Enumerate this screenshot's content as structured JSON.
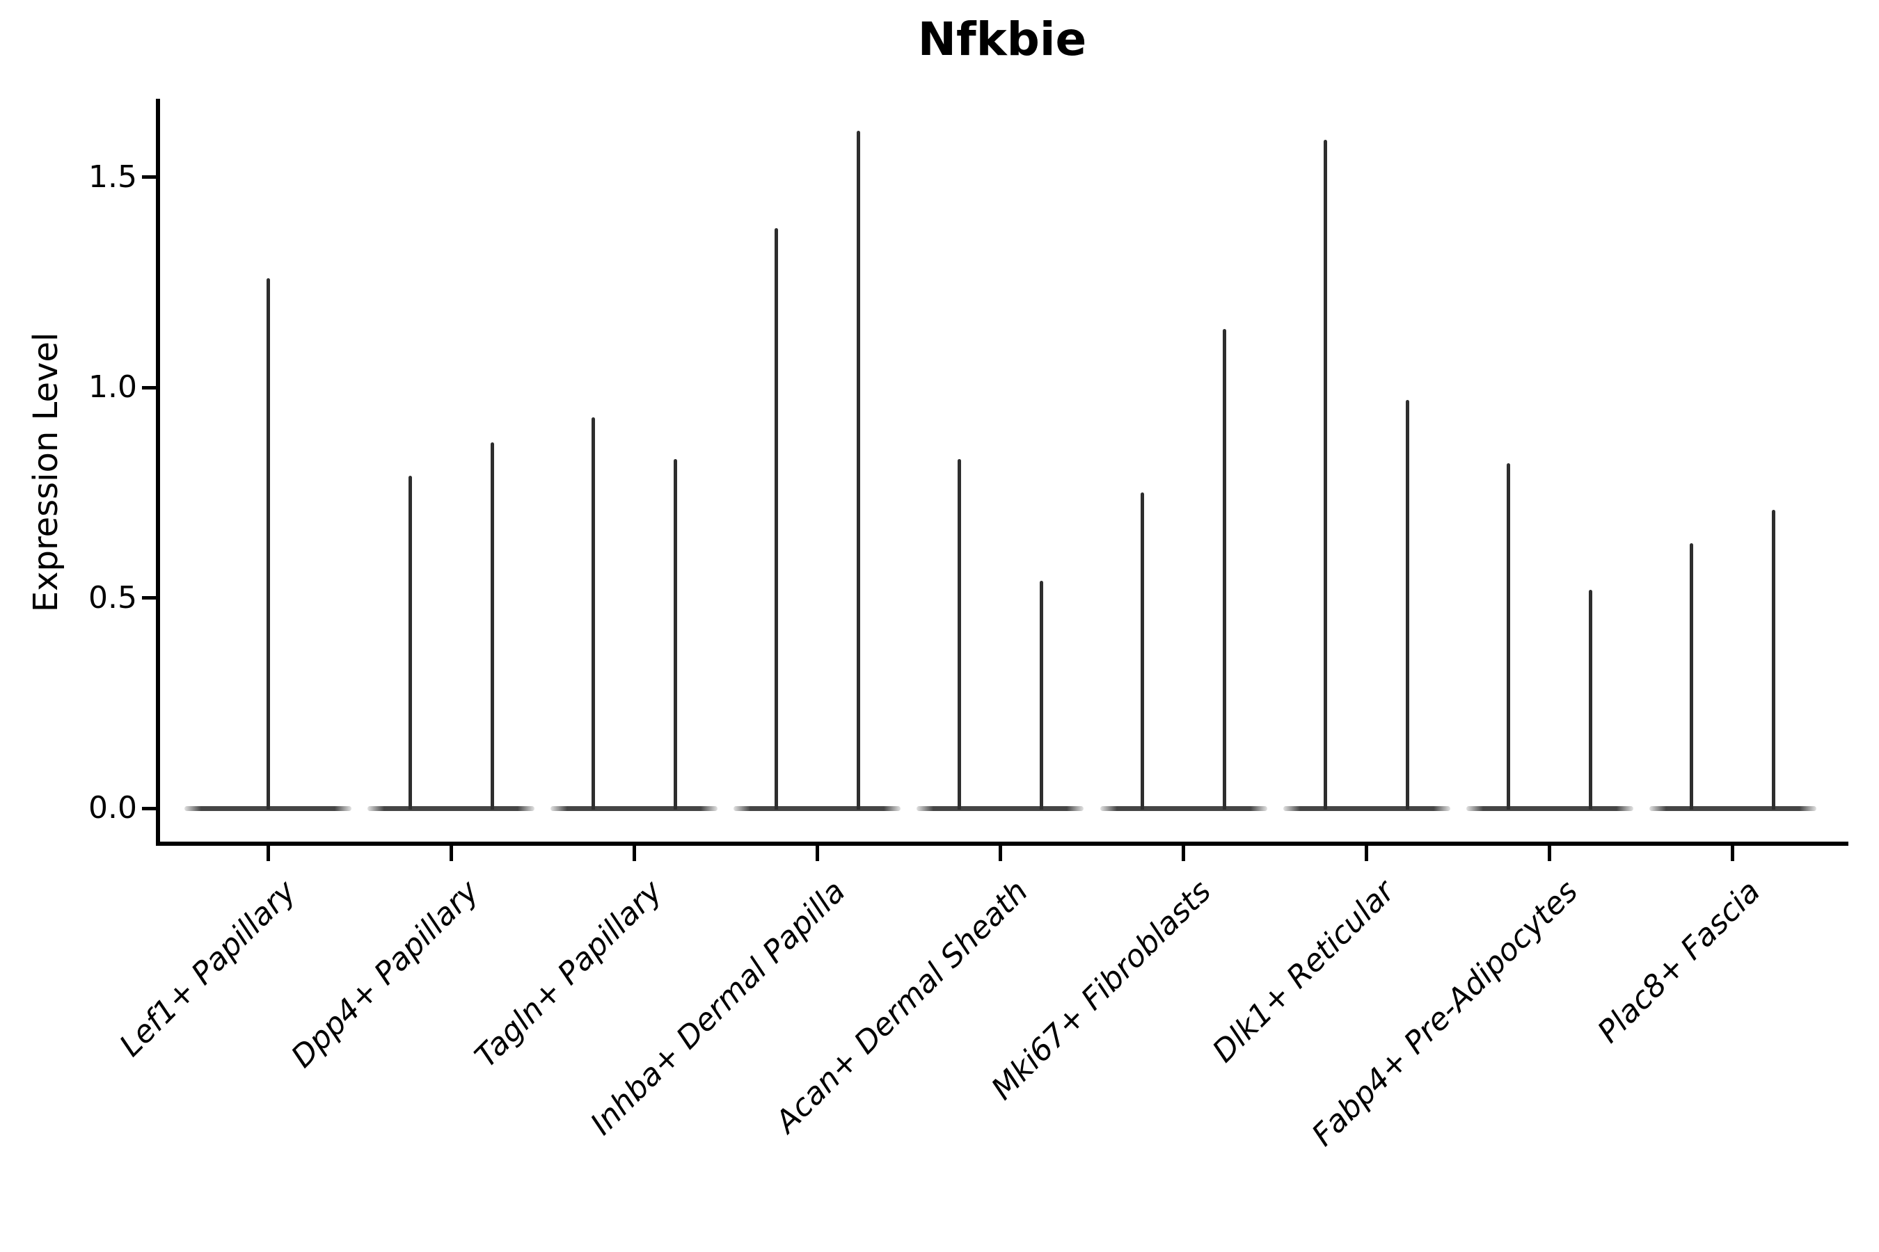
{
  "chart_data": {
    "type": "violin",
    "title": "Nfkbie",
    "ylabel": "Expression Level",
    "xlabel": "",
    "ytick_labels": [
      "0.0",
      "0.5",
      "1.0",
      "1.5"
    ],
    "ytick_values": [
      0.0,
      0.5,
      1.0,
      1.5
    ],
    "ylim": [
      -0.08,
      1.69
    ],
    "grid": false,
    "legend_position": "none",
    "categories": [
      "Lef1+ Papillary",
      "Dpp4+ Papillary",
      "Tagln+ Papillary",
      "Inhba+ Dermal Papilla",
      "Acan+ Dermal Sheath",
      "Mki67+ Fibroblasts",
      "Dlk1+ Reticular",
      "Fabp4+ Pre-Adipocytes",
      "Plac8+ Fascia"
    ],
    "description": "Violin plot of Nfkbie expression; most mass at 0 so each violin renders as a flat base at 0 with a thin spike up to its maximum. Categories 2-9 contain two violins each; category 1 contains one centered violin.",
    "violin_maxima": [
      [
        1.26
      ],
      [
        0.79,
        0.87
      ],
      [
        0.93,
        0.83
      ],
      [
        1.38,
        1.61
      ],
      [
        0.83,
        0.54
      ],
      [
        0.75,
        1.14
      ],
      [
        1.59,
        0.97
      ],
      [
        0.82,
        0.52
      ],
      [
        0.63,
        0.71
      ]
    ],
    "baseline_value": 0.0,
    "line_color": "#2e2e2e",
    "axis_color": "#000000",
    "background_color": "#ffffff"
  }
}
